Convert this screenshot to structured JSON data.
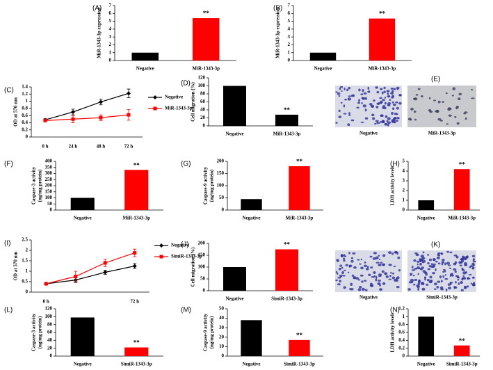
{
  "chart_data": [
    {
      "type": "bar",
      "label": "(A)",
      "ylabel": [
        "MiR-1343-3p expression"
      ],
      "categories": [
        "Negative",
        "MiR-1343-3p"
      ],
      "values": [
        1,
        5.4
      ],
      "colors": [
        "#000000",
        "#ff0000"
      ],
      "annotations": [
        null,
        "**"
      ],
      "ylim": [
        0,
        7
      ],
      "yticks": [
        0,
        1,
        2,
        3,
        4,
        5,
        6,
        7
      ]
    },
    {
      "type": "bar",
      "label": "(B)",
      "ylabel": [
        "MiR-1343-3p expression"
      ],
      "categories": [
        "Negative",
        "MiR-1343-3p"
      ],
      "values": [
        1,
        5.35
      ],
      "colors": [
        "#000000",
        "#ff0000"
      ],
      "annotations": [
        null,
        "**"
      ],
      "ylim": [
        0,
        7
      ],
      "yticks": [
        0,
        1,
        2,
        3,
        4,
        5,
        6,
        7
      ]
    },
    {
      "type": "line",
      "label": "(C)",
      "ylabel": [
        "OD at 570 nm"
      ],
      "categories": [
        "0 h",
        "24 h",
        "48 h",
        "72 h"
      ],
      "series": [
        {
          "name": "Negative",
          "color": "#000000",
          "marker": "diamond",
          "values": [
            0.48,
            0.7,
            0.98,
            1.22
          ],
          "errors": [
            0.03,
            0.08,
            0.08,
            0.12
          ]
        },
        {
          "name": "MiR-1343-3p",
          "color": "#ff0000",
          "marker": "square",
          "values": [
            0.46,
            0.5,
            0.54,
            0.62
          ],
          "errors": [
            0.03,
            0.1,
            0.08,
            0.15
          ]
        }
      ],
      "ylim": [
        0,
        1.4
      ],
      "yticks": [
        0,
        0.2,
        0.4,
        0.6,
        0.8,
        1,
        1.2,
        1.4
      ]
    },
    {
      "type": "bar",
      "label": "(D)",
      "ylabel": [
        "Cell migration (%)"
      ],
      "categories": [
        "Negative",
        "MiR-1343-3p"
      ],
      "values": [
        100,
        28
      ],
      "colors": [
        "#000000",
        "#000000"
      ],
      "annotations": [
        null,
        "**"
      ],
      "ylim": [
        0,
        120
      ],
      "yticks": [
        0,
        20,
        40,
        60,
        80,
        100,
        120
      ]
    },
    {
      "type": "bar",
      "label": "(F)",
      "ylabel": [
        "Caspase-3 activity",
        "(ng/mg protein)"
      ],
      "categories": [
        "Negative",
        "MiR-1343-3p"
      ],
      "values": [
        100,
        330
      ],
      "colors": [
        "#000000",
        "#ff0000"
      ],
      "annotations": [
        null,
        "**"
      ],
      "ylim": [
        0,
        400
      ],
      "yticks": [
        0,
        50,
        100,
        150,
        200,
        250,
        300,
        350,
        400
      ]
    },
    {
      "type": "bar",
      "label": "(G)",
      "ylabel": [
        "Caspase-9 activity",
        "(ng/mg protein)"
      ],
      "categories": [
        "Negative",
        "MiR-1343-3p"
      ],
      "values": [
        45,
        180
      ],
      "colors": [
        "#000000",
        "#ff0000"
      ],
      "annotations": [
        null,
        "**"
      ],
      "ylim": [
        0,
        200
      ],
      "yticks": [
        0,
        50,
        100,
        150,
        200
      ]
    },
    {
      "type": "bar",
      "label": "(H)",
      "ylabel": [
        "LDH activity levels"
      ],
      "categories": [
        "Negative",
        "MiR-1343-3p"
      ],
      "values": [
        1,
        4.2
      ],
      "colors": [
        "#000000",
        "#ff0000"
      ],
      "annotations": [
        null,
        "**"
      ],
      "ylim": [
        0,
        5
      ],
      "yticks": [
        0,
        1,
        2,
        3,
        4,
        5
      ]
    },
    {
      "type": "line",
      "label": "(I)",
      "ylabel": [
        "OD at 570 nm"
      ],
      "categories": [
        "0 h",
        null,
        null,
        "72 h"
      ],
      "series": [
        {
          "name": "Negative",
          "color": "#000000",
          "marker": "diamond",
          "values": [
            0.4,
            0.58,
            0.95,
            1.25
          ],
          "errors": [
            0.03,
            0.12,
            0.1,
            0.12
          ]
        },
        {
          "name": "SimiR-1343-3p",
          "color": "#ff0000",
          "marker": "square",
          "values": [
            0.4,
            0.75,
            1.4,
            1.88
          ],
          "errors": [
            0.03,
            0.25,
            0.18,
            0.18
          ]
        }
      ],
      "ylim": [
        0,
        2.5
      ],
      "yticks": [
        0,
        0.5,
        1,
        1.5,
        2,
        2.5
      ]
    },
    {
      "type": "bar",
      "label": "(J)",
      "ylabel": [
        "Cell migration (%)"
      ],
      "categories": [
        "Negative",
        "SimiR-1343-3p"
      ],
      "values": [
        100,
        175
      ],
      "colors": [
        "#000000",
        "#ff0000"
      ],
      "annotations": [
        null,
        "**"
      ],
      "ylim": [
        0,
        200
      ],
      "yticks": [
        0,
        50,
        100,
        150,
        200
      ]
    },
    {
      "type": "bar",
      "label": "(L)",
      "ylabel": [
        "Caspase-3 activity",
        "(ng/mg protein)"
      ],
      "categories": [
        "Negative",
        "SimiR-1343-3p"
      ],
      "values": [
        98,
        22
      ],
      "colors": [
        "#000000",
        "#ff0000"
      ],
      "annotations": [
        null,
        "**"
      ],
      "ylim": [
        0,
        120
      ],
      "yticks": [
        0,
        20,
        40,
        60,
        80,
        100,
        120
      ]
    },
    {
      "type": "bar",
      "label": "(M)",
      "ylabel": [
        "Caspase-9 activity",
        "(ng/mg protein)"
      ],
      "categories": [
        "Negative",
        "SimiR-1343-3p"
      ],
      "values": [
        38,
        17
      ],
      "colors": [
        "#000000",
        "#ff0000"
      ],
      "annotations": [
        null,
        "**"
      ],
      "ylim": [
        0,
        50
      ],
      "yticks": [
        0,
        10,
        20,
        30,
        40,
        50
      ]
    },
    {
      "type": "bar",
      "label": "(N)",
      "ylabel": [
        "LDH activity levels"
      ],
      "categories": [
        "Negative",
        "SimiR-1343-3p"
      ],
      "values": [
        1,
        0.27
      ],
      "colors": [
        "#000000",
        "#ff0000"
      ],
      "annotations": [
        null,
        "**"
      ],
      "ylim": [
        0,
        1.2
      ],
      "yticks": [
        0,
        0.2,
        0.4,
        0.6,
        0.8,
        1,
        1.2
      ]
    }
  ],
  "images": [
    {
      "label": "(E)",
      "captions": [
        "Negative",
        "MiR-1343-3p"
      ]
    },
    {
      "label": "(K)",
      "captions": [
        "Negative",
        "SimiR-1343-3p"
      ]
    }
  ]
}
